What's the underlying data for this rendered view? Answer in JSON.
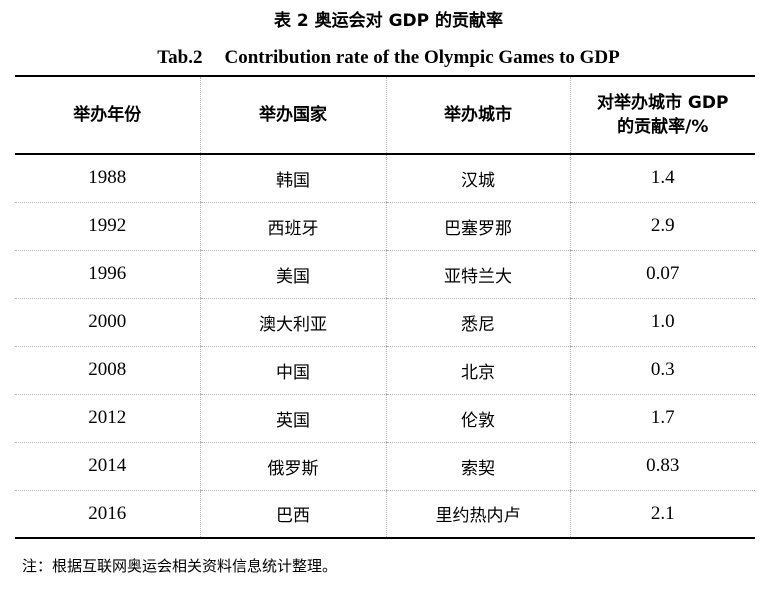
{
  "title_cn": "表 2 奥运会对 GDP 的贡献率",
  "title_en_label": "Tab.2",
  "title_en_text": "Contribution rate of the Olympic Games to GDP",
  "headers": [
    "举办年份",
    "举办国家",
    "举办城市",
    "对举办城市 GDP",
    "的贡献率/%"
  ],
  "rows": [
    [
      "1988",
      "韩国",
      "汉城",
      "1.4"
    ],
    [
      "1992",
      "西班牙",
      "巴塞罗那",
      "2.9"
    ],
    [
      "1996",
      "美国",
      "亚特兰大",
      "0.07"
    ],
    [
      "2000",
      "澳大利亚",
      "悉尼",
      "1.0"
    ],
    [
      "2008",
      "中国",
      "北京",
      "0.3"
    ],
    [
      "2012",
      "英国",
      "伦敦",
      "1.7"
    ],
    [
      "2014",
      "俄罗斯",
      "索契",
      "0.83"
    ],
    [
      "2016",
      "巴西",
      "里约热内卢",
      "2.1"
    ]
  ],
  "note": "注：根据互联网奥运会相关资料信息统计整理。"
}
